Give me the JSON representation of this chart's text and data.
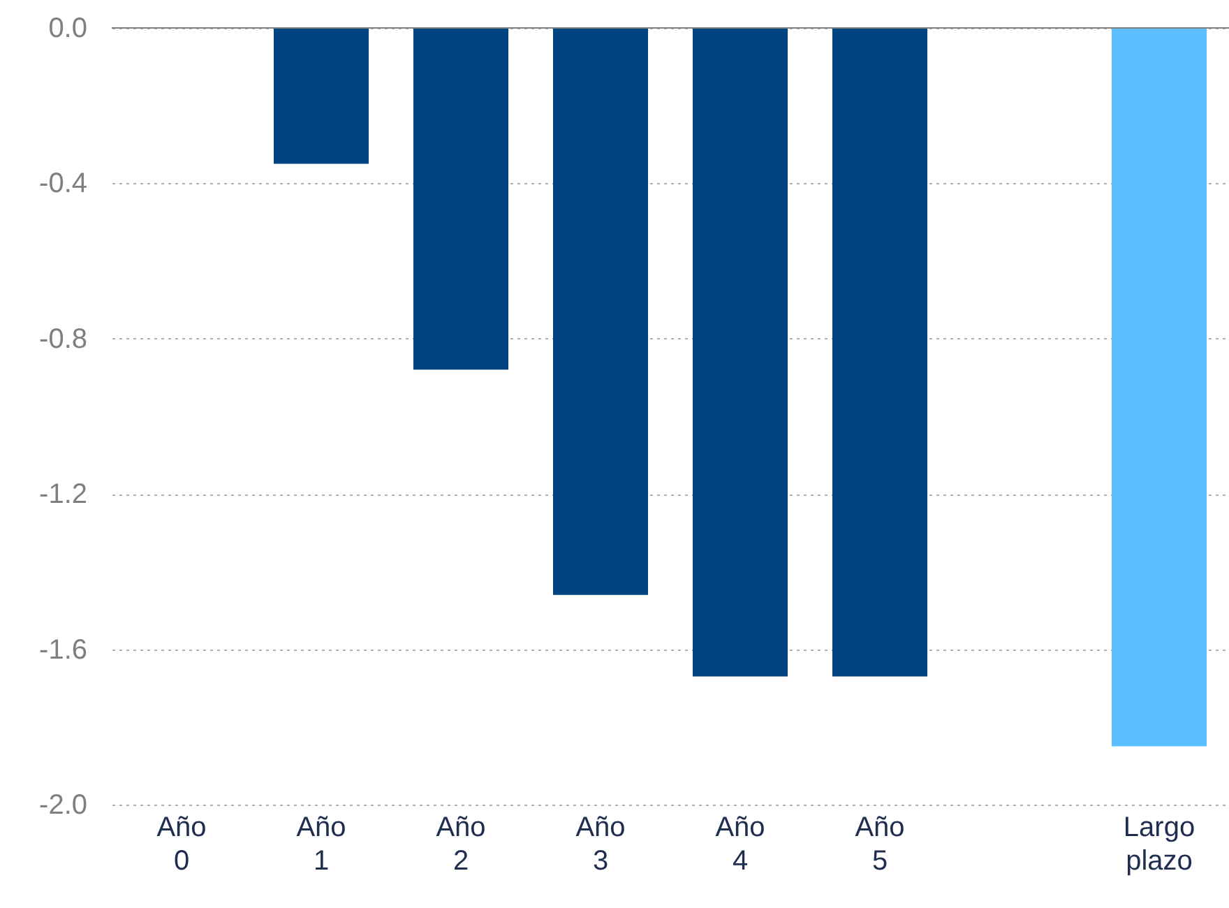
{
  "chart_data": {
    "type": "bar",
    "categories": [
      "Año 0",
      "Año 1",
      "Año 2",
      "Año 3",
      "Año 4",
      "Año 5",
      null,
      "Largo plazo"
    ],
    "values": [
      0,
      -0.35,
      -0.88,
      -1.46,
      -1.67,
      -1.67,
      null,
      -1.85
    ],
    "colors": [
      "#004481",
      "#004481",
      "#004481",
      "#004481",
      "#004481",
      "#004481",
      null,
      "#5bbeff"
    ],
    "ylim": [
      -2.0,
      0.0
    ],
    "yticks": [
      {
        "value": -2.0,
        "label": "-2.0"
      },
      -1.6,
      -1.2,
      -0.8,
      -0.4,
      {
        "value": 0.0,
        "label": "0.0"
      }
    ],
    "grid": "y"
  }
}
